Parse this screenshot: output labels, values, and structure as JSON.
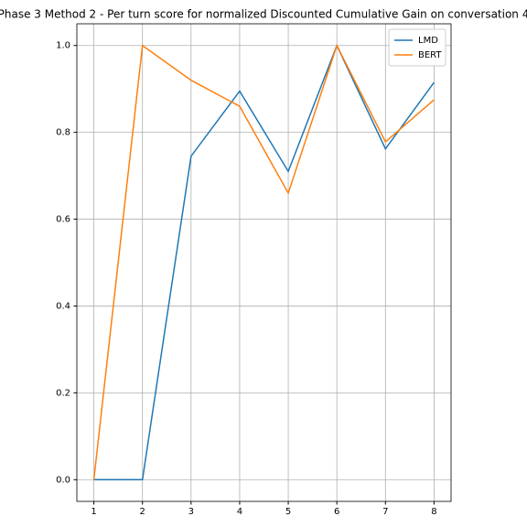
{
  "chart_data": {
    "type": "line",
    "title": "Phase 3 Method 2 - Per turn score for normalized Discounted Cumulative Gain on conversation 4",
    "x": [
      1,
      2,
      3,
      4,
      5,
      6,
      7,
      8
    ],
    "series": [
      {
        "name": "LMD",
        "color": "#1f77b4",
        "values": [
          0,
          0,
          0.745,
          0.895,
          0.71,
          1.0,
          0.762,
          0.915
        ]
      },
      {
        "name": "BERT",
        "color": "#ff7f0e",
        "values": [
          0,
          1.0,
          0.92,
          0.86,
          0.66,
          1.0,
          0.778,
          0.875
        ]
      }
    ],
    "xlim": [
      0.65,
      8.35
    ],
    "xticks": [
      1,
      2,
      3,
      4,
      5,
      6,
      7,
      8
    ],
    "ylim": [
      -0.05,
      1.05
    ],
    "yticks": [
      {
        "value": 0,
        "label": "0.0"
      },
      {
        "value": 0.2,
        "label": "0.2"
      },
      {
        "value": 0.4,
        "label": "0.4"
      },
      {
        "value": 0.6,
        "label": "0.6"
      },
      {
        "value": 0.8,
        "label": "0.8"
      },
      {
        "value": 1.0,
        "label": "1.0"
      }
    ],
    "grid": true,
    "legend": "upper-right"
  }
}
